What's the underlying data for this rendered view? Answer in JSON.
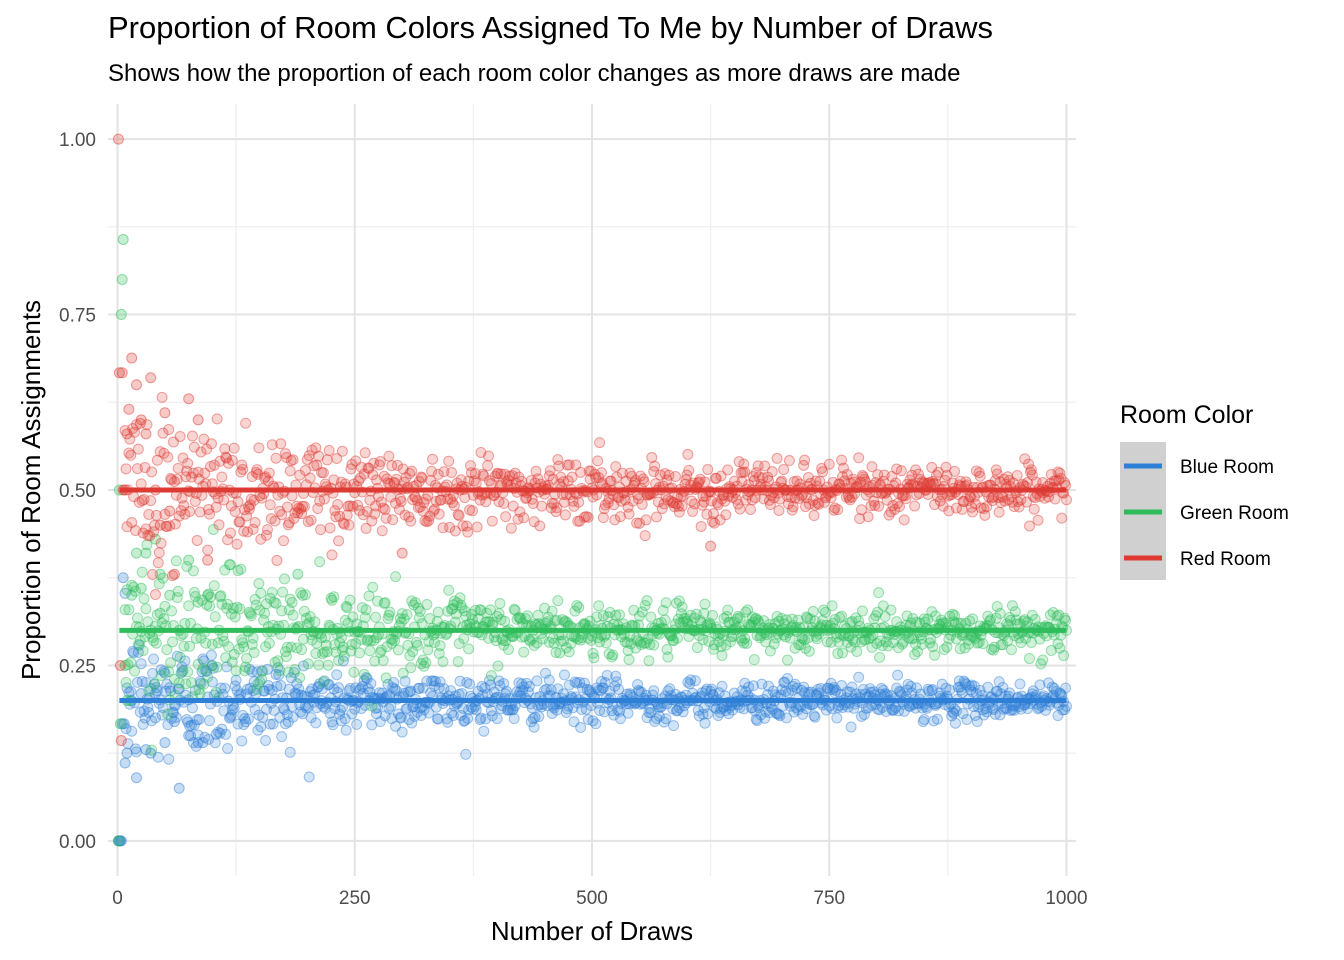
{
  "chart_data": {
    "type": "scatter",
    "title": "Proportion of Room Colors Assigned To Me by Number of Draws",
    "subtitle": "Shows how the proportion of each room color changes as more draws are made",
    "xlabel": "Number of Draws",
    "ylabel": "Proportion of Room Assignments",
    "xlim": [
      -10,
      1010
    ],
    "ylim": [
      -0.05,
      1.05
    ],
    "x_ticks": [
      0,
      250,
      500,
      750,
      1000
    ],
    "x_tick_labels": [
      "0",
      "250",
      "500",
      "750",
      "1000"
    ],
    "y_ticks": [
      0,
      0.25,
      0.5,
      0.75,
      1.0
    ],
    "y_tick_labels": [
      "0.00",
      "0.25",
      "0.50",
      "0.75",
      "1.00"
    ],
    "grid": true,
    "legend": {
      "title": "Room Color",
      "position": "right",
      "entries": [
        "Blue Room",
        "Green Room",
        "Red Room"
      ]
    },
    "draws": 1000,
    "series": [
      {
        "name": "Blue Room",
        "color": "#2E7FD6",
        "expected_proportion": 0.2,
        "early_points": [
          [
            1,
            0
          ],
          [
            2,
            0
          ],
          [
            3,
            0
          ],
          [
            4,
            0
          ],
          [
            5,
            0.167
          ],
          [
            6,
            0.375
          ],
          [
            7,
            0.167
          ],
          [
            8,
            0.111
          ],
          [
            10,
            0.125
          ],
          [
            15,
            0.2
          ],
          [
            20,
            0.09
          ],
          [
            25,
            0.21
          ],
          [
            30,
            0.13
          ],
          [
            35,
            0.125
          ],
          [
            40,
            0.21
          ],
          [
            50,
            0.14
          ],
          [
            60,
            0.17
          ],
          [
            65,
            0.075
          ],
          [
            75,
            0.15
          ],
          [
            85,
            0.14
          ],
          [
            90,
            0.14
          ],
          [
            100,
            0.25
          ]
        ],
        "spread_start": 0.11,
        "spread_end": 0.025
      },
      {
        "name": "Green Room",
        "color": "#2EBD5A",
        "expected_proportion": 0.3,
        "early_points": [
          [
            1,
            0
          ],
          [
            2,
            0.5
          ],
          [
            3,
            0.167
          ],
          [
            4,
            0.75
          ],
          [
            5,
            0.8
          ],
          [
            6,
            0.857
          ],
          [
            8,
            0.25
          ],
          [
            10,
            0.2
          ],
          [
            15,
            0.35
          ],
          [
            20,
            0.41
          ],
          [
            25,
            0.36
          ],
          [
            30,
            0.41
          ],
          [
            40,
            0.43
          ],
          [
            45,
            0.38
          ],
          [
            55,
            0.35
          ],
          [
            65,
            0.3
          ],
          [
            75,
            0.4
          ],
          [
            85,
            0.34
          ],
          [
            95,
            0.35
          ],
          [
            190,
            0.38
          ]
        ],
        "spread_start": 0.14,
        "spread_end": 0.03
      },
      {
        "name": "Red Room",
        "color": "#DD3A33",
        "expected_proportion": 0.5,
        "early_points": [
          [
            1,
            1.0
          ],
          [
            2,
            0.667
          ],
          [
            3,
            0.25
          ],
          [
            4,
            0.143
          ],
          [
            5,
            0.667
          ],
          [
            6,
            0.5
          ],
          [
            8,
            0.5
          ],
          [
            10,
            0.58
          ],
          [
            12,
            0.615
          ],
          [
            15,
            0.688
          ],
          [
            20,
            0.65
          ],
          [
            25,
            0.6
          ],
          [
            30,
            0.58
          ],
          [
            35,
            0.66
          ],
          [
            40,
            0.5
          ],
          [
            45,
            0.45
          ],
          [
            50,
            0.61
          ],
          [
            55,
            0.47
          ],
          [
            60,
            0.38
          ],
          [
            75,
            0.63
          ],
          [
            85,
            0.6
          ],
          [
            95,
            0.4
          ],
          [
            300,
            0.41
          ],
          [
            625,
            0.42
          ]
        ],
        "spread_start": 0.15,
        "spread_end": 0.035
      }
    ]
  }
}
